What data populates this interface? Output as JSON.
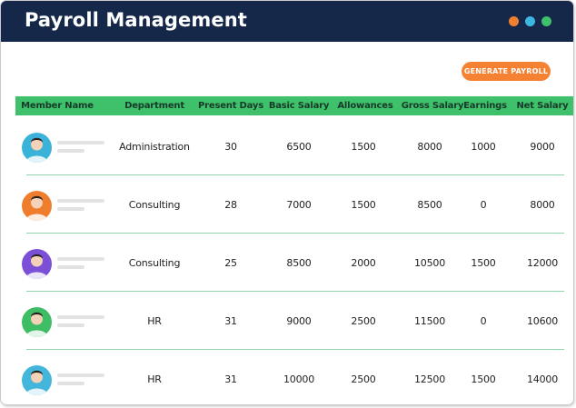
{
  "window": {
    "title": "Payroll Management",
    "dots": [
      {
        "name": "orange-dot",
        "color": "#f07f32"
      },
      {
        "name": "blue-dot",
        "color": "#3cb8e0"
      },
      {
        "name": "green-dot",
        "color": "#3fc06b"
      }
    ]
  },
  "toolbar": {
    "generate_label": "GENERATE PAYROLL",
    "generate_color": "#f58233"
  },
  "colors": {
    "titlebar": "#15284a",
    "header_bg": "#3fc06b",
    "divider": "#8fd5a9"
  },
  "table": {
    "headers": [
      "Member Name",
      "Department",
      "Present Days",
      "Basic Salary",
      "Allowances",
      "Gross Salary",
      "Earnings",
      "Net Salary"
    ],
    "rows": [
      {
        "avatar_color": "#3bb3d8",
        "department": "Administration",
        "present_days": "30",
        "basic_salary": "6500",
        "allowances": "1500",
        "gross_salary": "8000",
        "earnings": "1000",
        "net_salary": "9000"
      },
      {
        "avatar_color": "#ef7d2e",
        "department": "Consulting",
        "present_days": "28",
        "basic_salary": "7000",
        "allowances": "1500",
        "gross_salary": "8500",
        "earnings": "0",
        "net_salary": "8000"
      },
      {
        "avatar_color": "#7b4fd6",
        "department": "Consulting",
        "present_days": "25",
        "basic_salary": "8500",
        "allowances": "2000",
        "gross_salary": "10500",
        "earnings": "1500",
        "net_salary": "12000"
      },
      {
        "avatar_color": "#3fbd64",
        "department": "HR",
        "present_days": "31",
        "basic_salary": "9000",
        "allowances": "2500",
        "gross_salary": "11500",
        "earnings": "0",
        "net_salary": "10600"
      },
      {
        "avatar_color": "#45b6db",
        "department": "HR",
        "present_days": "31",
        "basic_salary": "10000",
        "allowances": "2500",
        "gross_salary": "12500",
        "earnings": "1500",
        "net_salary": "14000"
      }
    ]
  }
}
